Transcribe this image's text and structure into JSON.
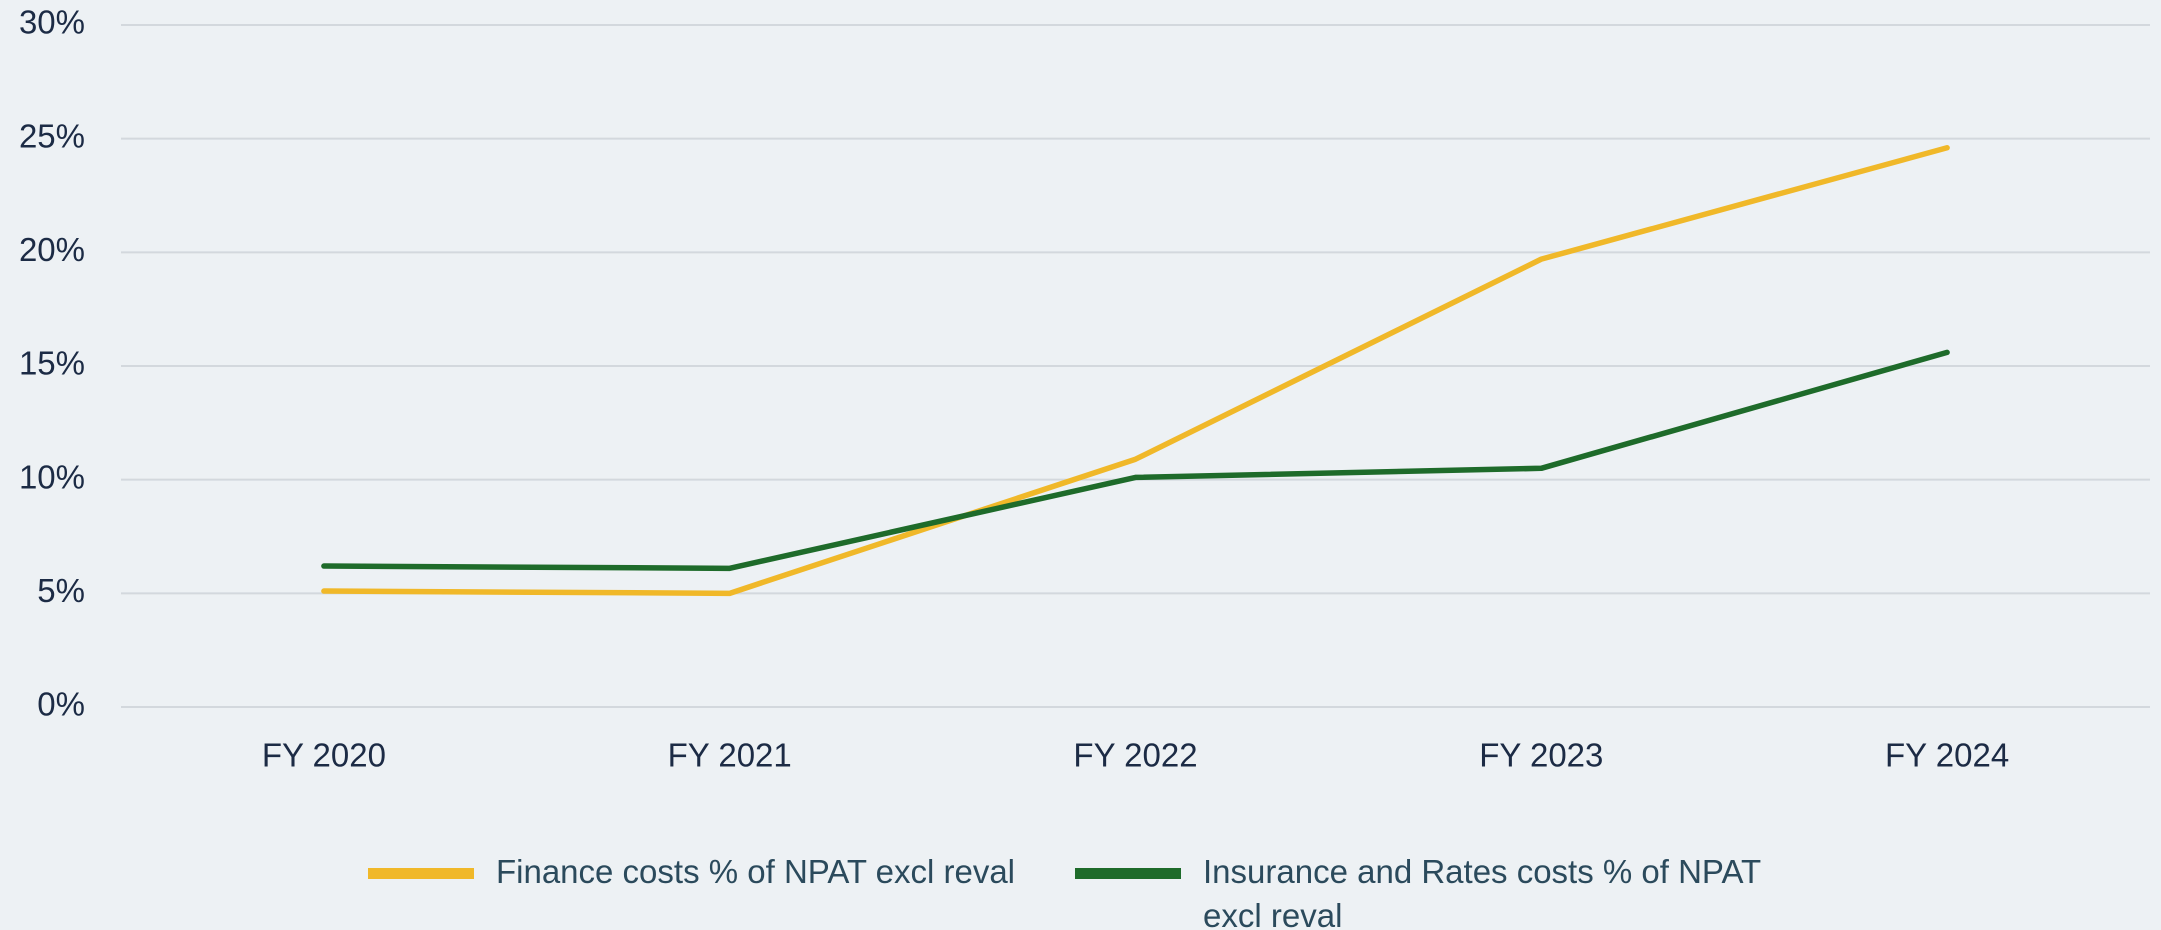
{
  "chart_data": {
    "type": "line",
    "categories": [
      "FY 2020",
      "FY 2021",
      "FY 2022",
      "FY 2023",
      "FY 2024"
    ],
    "series": [
      {
        "name": "Finance costs % of NPAT excl reval",
        "color": "#f0b829",
        "values": [
          5.1,
          5.0,
          10.9,
          19.7,
          24.6
        ]
      },
      {
        "name": "Insurance and Rates costs % of NPAT excl reval",
        "color": "#1e6b2a",
        "values": [
          6.2,
          6.1,
          10.1,
          10.5,
          15.6
        ]
      }
    ],
    "ylim": [
      0,
      30
    ],
    "yticks": [
      {
        "value": 0,
        "label": "0%"
      },
      {
        "value": 5,
        "label": "5%"
      },
      {
        "value": 10,
        "label": "10%"
      },
      {
        "value": 15,
        "label": "15%"
      },
      {
        "value": 20,
        "label": "20%"
      },
      {
        "value": 25,
        "label": "25%"
      },
      {
        "value": 30,
        "label": "30%"
      }
    ],
    "grid": true,
    "legend": "bottom"
  }
}
